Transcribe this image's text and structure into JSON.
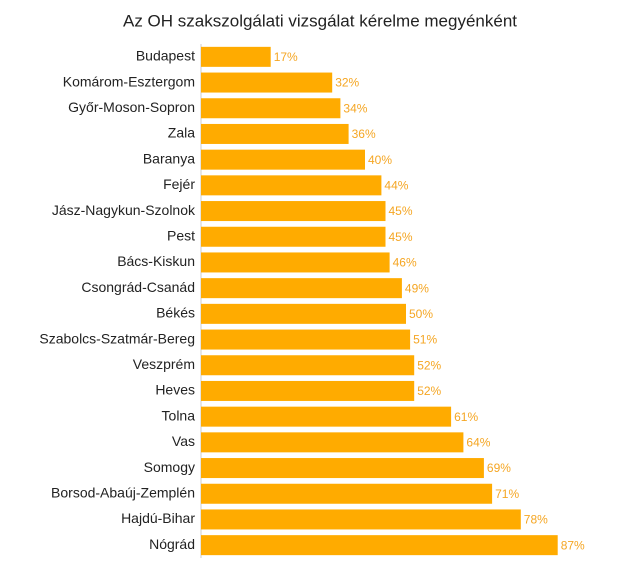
{
  "chart_data": {
    "type": "bar",
    "orientation": "horizontal",
    "title": "Az OH szakszolgálati vizsgálat kérelme megyénként",
    "categories": [
      "Budapest",
      "Komárom-Esztergom",
      "Győr-Moson-Sopron",
      "Zala",
      "Baranya",
      "Fejér",
      "Jász-Nagykun-Szolnok",
      "Pest",
      "Bács-Kiskun",
      "Csongrád-Csanád",
      "Békés",
      "Szabolcs-Szatmár-Bereg",
      "Veszprém",
      "Heves",
      "Tolna",
      "Vas",
      "Somogy",
      "Borsod-Abaúj-Zemplén",
      "Hajdú-Bihar",
      "Nógrád"
    ],
    "values": [
      17,
      32,
      34,
      36,
      40,
      44,
      45,
      45,
      46,
      49,
      50,
      51,
      52,
      52,
      61,
      64,
      69,
      71,
      78,
      87
    ],
    "value_labels": [
      "17%",
      "32%",
      "34%",
      "36%",
      "40%",
      "44%",
      "45%",
      "45%",
      "46%",
      "49%",
      "50%",
      "51%",
      "52%",
      "52%",
      "61%",
      "64%",
      "69%",
      "71%",
      "78%",
      "87%"
    ],
    "color": "#ffab00",
    "label_color": "#f5a623",
    "xlim": [
      0,
      100
    ]
  }
}
